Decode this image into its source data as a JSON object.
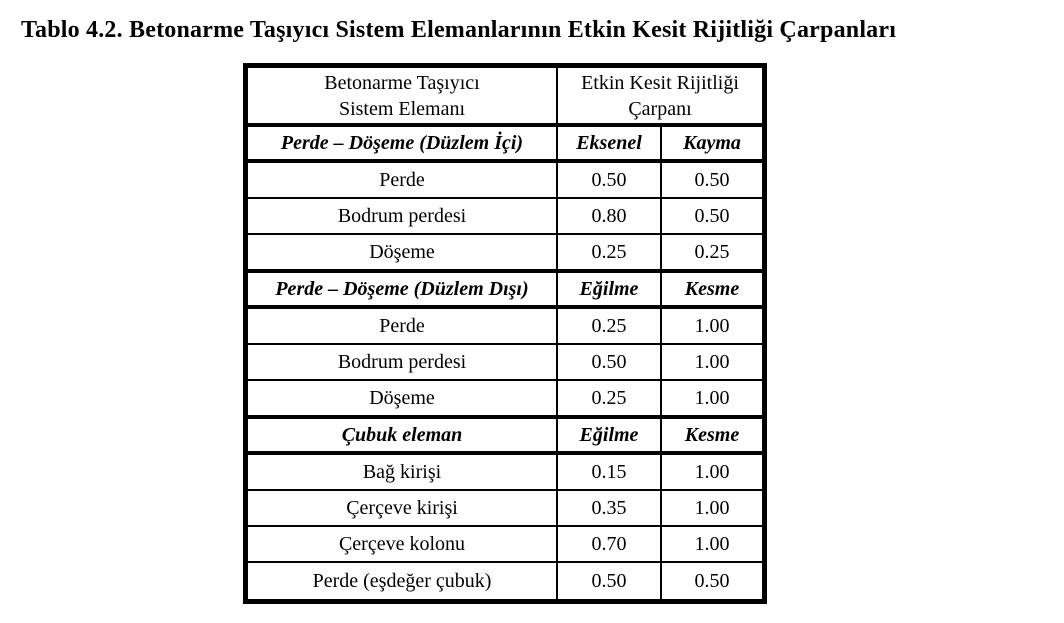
{
  "title": "Tablo 4.2. Betonarme Taşıyıcı Sistem Elemanlarının Etkin Kesit Rijitliği Çarpanları",
  "table": {
    "header": {
      "element": "Betonarme Taşıyıcı\nSistem Elemanı",
      "multiplier": "Etkin Kesit Rijitliği\nÇarpanı"
    },
    "sections": [
      {
        "header": {
          "label": "Perde – Döşeme (Düzlem İçi)",
          "cols": [
            "Eksenel",
            "Kayma"
          ]
        },
        "rows": [
          {
            "label": "Perde",
            "values": [
              "0.50",
              "0.50"
            ]
          },
          {
            "label": "Bodrum perdesi",
            "values": [
              "0.80",
              "0.50"
            ]
          },
          {
            "label": "Döşeme",
            "values": [
              "0.25",
              "0.25"
            ]
          }
        ]
      },
      {
        "header": {
          "label": "Perde – Döşeme (Düzlem Dışı)",
          "cols": [
            "Eğilme",
            "Kesme"
          ]
        },
        "rows": [
          {
            "label": "Perde",
            "values": [
              "0.25",
              "1.00"
            ]
          },
          {
            "label": "Bodrum perdesi",
            "values": [
              "0.50",
              "1.00"
            ]
          },
          {
            "label": "Döşeme",
            "values": [
              "0.25",
              "1.00"
            ]
          }
        ]
      },
      {
        "header": {
          "label": "Çubuk eleman",
          "cols": [
            "Eğilme",
            "Kesme"
          ]
        },
        "rows": [
          {
            "label": "Bağ kirişi",
            "values": [
              "0.15",
              "1.00"
            ]
          },
          {
            "label": "Çerçeve kirişi",
            "values": [
              "0.35",
              "1.00"
            ]
          },
          {
            "label": "Çerçeve kolonu",
            "values": [
              "0.70",
              "1.00"
            ]
          },
          {
            "label": "Perde (eşdeğer çubuk)",
            "values": [
              "0.50",
              "0.50"
            ]
          }
        ]
      }
    ]
  },
  "colors": {
    "text": "#000000",
    "border": "#000000",
    "background": "#ffffff"
  }
}
